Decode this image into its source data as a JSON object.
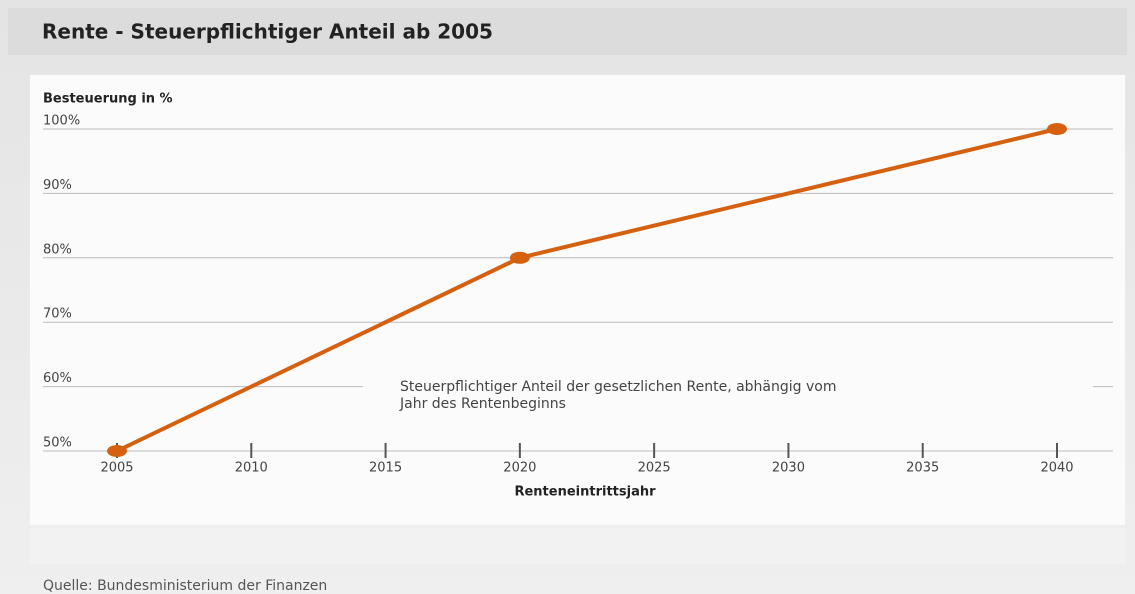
{
  "chart_data": {
    "type": "line",
    "title": "Rente - Steuerpflichtiger Anteil ab 2005",
    "y_label": "Besteuerung in %",
    "x_label": "Renteneintrittsjahr",
    "annotation": [
      "Steuerpflichtiger Anteil der gesetzlichen Rente, abhängig vom",
      "Jahr des Rentenbeginns"
    ],
    "source": "Quelle: Bundesministerium der Finanzen",
    "x": [
      2005,
      2020,
      2040
    ],
    "series": [
      {
        "name": "Steuerpflichtiger Anteil",
        "color": "#d5600f",
        "values": [
          50,
          80,
          100
        ]
      }
    ],
    "xlim": [
      2005,
      2040
    ],
    "xticks": [
      2005,
      2010,
      2015,
      2020,
      2025,
      2030,
      2035,
      2040
    ],
    "ylim": [
      50,
      100
    ],
    "yticks": [
      {
        "value": 50,
        "label": "50%"
      },
      {
        "value": 60,
        "label": "60%"
      },
      {
        "value": 70,
        "label": "70%"
      },
      {
        "value": 80,
        "label": "80%"
      },
      {
        "value": 90,
        "label": "90%"
      },
      {
        "value": 100,
        "label": "100%"
      }
    ],
    "grid": true
  }
}
